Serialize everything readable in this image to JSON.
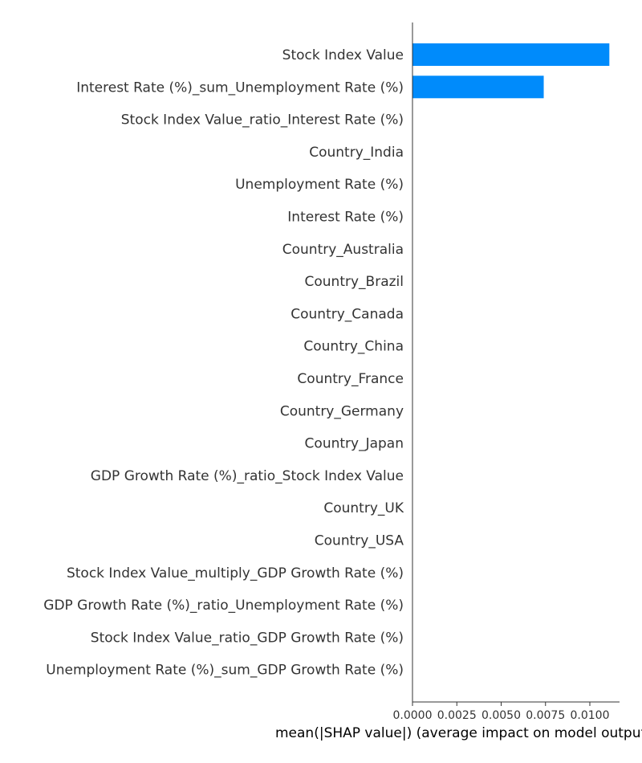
{
  "chart_data": {
    "type": "bar",
    "orientation": "horizontal",
    "categories": [
      "Stock Index Value",
      "Interest Rate (%)_sum_Unemployment Rate (%)",
      "Stock Index Value_ratio_Interest Rate (%)",
      "Country_India",
      "Unemployment Rate (%)",
      "Interest Rate (%)",
      "Country_Australia",
      "Country_Brazil",
      "Country_Canada",
      "Country_China",
      "Country_France",
      "Country_Germany",
      "Country_Japan",
      "GDP Growth Rate (%)_ratio_Stock Index Value",
      "Country_UK",
      "Country_USA",
      "Stock Index Value_multiply_GDP Growth Rate (%)",
      "GDP Growth Rate (%)_ratio_Unemployment Rate (%)",
      "Stock Index Value_ratio_GDP Growth Rate (%)",
      "Unemployment Rate (%)_sum_GDP Growth Rate (%)"
    ],
    "values": [
      0.0111,
      0.0074,
      0,
      0,
      0,
      0,
      0,
      0,
      0,
      0,
      0,
      0,
      0,
      0,
      0,
      0,
      0,
      0,
      0,
      0
    ],
    "xlabel": "mean(|SHAP value|) (average impact on model output magnitude)",
    "xlim": [
      0,
      0.0117
    ],
    "xticks": [
      0.0,
      0.0025,
      0.005,
      0.0075,
      0.01
    ],
    "xtick_labels": [
      "0.0000",
      "0.0025",
      "0.0050",
      "0.0075",
      "0.0100"
    ],
    "grid": false,
    "bar_color": "#008bfb"
  }
}
